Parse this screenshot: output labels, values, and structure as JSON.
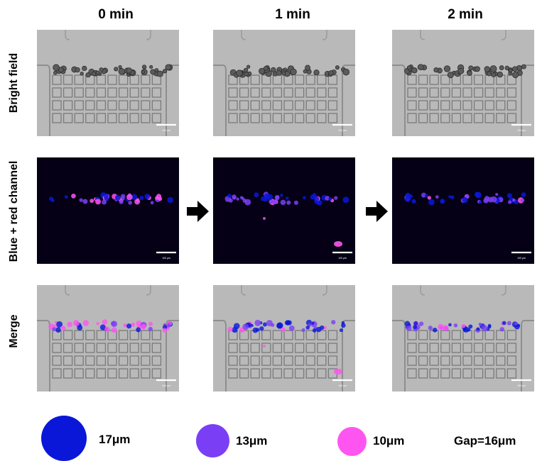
{
  "columns": [
    {
      "title": "0 min"
    },
    {
      "title": "1 min"
    },
    {
      "title": "2 min"
    }
  ],
  "rows": [
    {
      "label": "Bright field"
    },
    {
      "label": "Blue + red channel"
    },
    {
      "label": "Merge"
    }
  ],
  "scale_bar_label": "100 μm",
  "legend": [
    {
      "label": "17μm",
      "color": "#0a17d9"
    },
    {
      "label": "13μm",
      "color": "#7a3ff5"
    },
    {
      "label": "10μm",
      "color": "#ff55f0"
    },
    {
      "label": "Gap=16μm"
    }
  ],
  "colors": {
    "brightfield_bg": "#b9b9b9",
    "fluorescence_bg": "#050015",
    "arrow": "#000000"
  }
}
